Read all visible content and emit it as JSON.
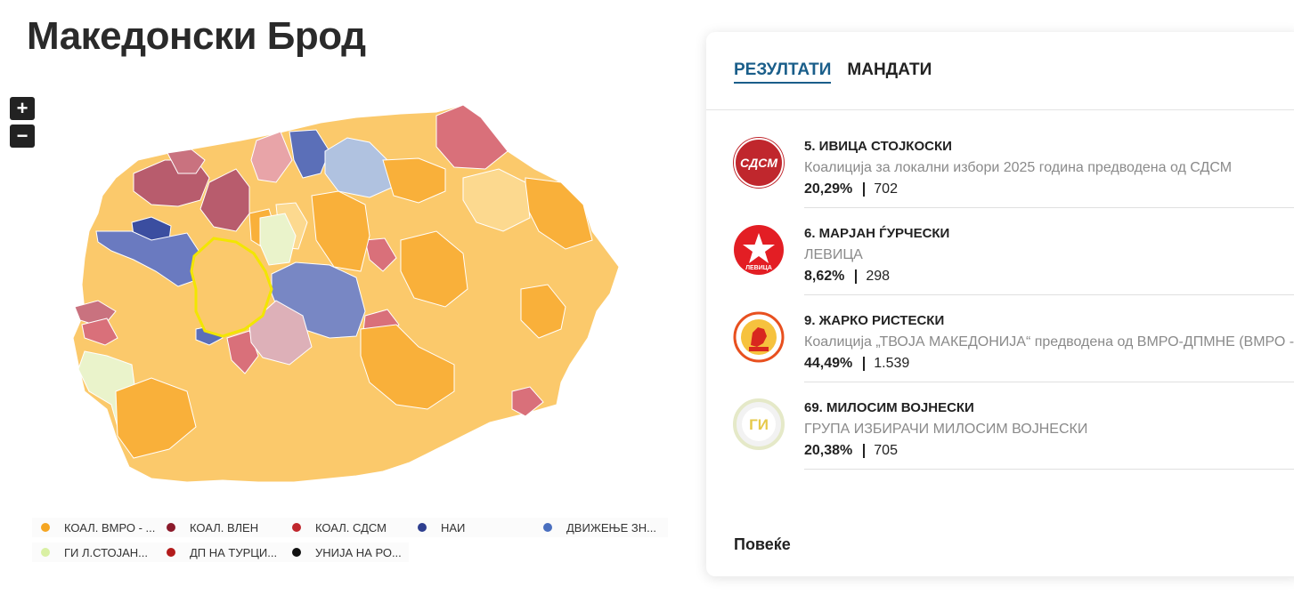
{
  "page": {
    "title": "Македонски Брод"
  },
  "map_controls": {
    "zoom_in": "+",
    "zoom_out": "−"
  },
  "legend": [
    {
      "label": "КОАЛ. ВМРО - ...",
      "color": "#f5a623"
    },
    {
      "label": "КОАЛ. ВЛЕН",
      "color": "#8b1a2b"
    },
    {
      "label": "КОАЛ. СДСМ",
      "color": "#c0272d"
    },
    {
      "label": "НАИ",
      "color": "#2e3f8f"
    },
    {
      "label": "ДВИЖЕЊЕ ЗН...",
      "color": "#4a6fbf"
    },
    {
      "label": "ГИ Л.СТОЈАН...",
      "color": "#d9f0a3"
    },
    {
      "label": "ДП НА ТУРЦИ...",
      "color": "#b31b1b"
    },
    {
      "label": "УНИЈА НА РО...",
      "color": "#111111"
    }
  ],
  "results": {
    "tabs": [
      {
        "label": "РЕЗУЛТАТИ",
        "active": true
      },
      {
        "label": "МАНДАТИ",
        "active": false
      }
    ],
    "candidates": [
      {
        "name": "5. ИВИЦА СТОЈКОСКИ",
        "party": "Коалиција за локални избори 2025 година предводена од СДСМ",
        "percent": "20,29%",
        "votes": "702",
        "logo_text": "СДСМ",
        "logo_icon": "sdsm-logo-icon",
        "logo_color": "#c0272d"
      },
      {
        "name": "6. МАРЈАН ЃУРЧЕСКИ",
        "party": "ЛЕВИЦА",
        "percent": "8,62%",
        "votes": "298",
        "logo_text": "ЛЕВИЦА",
        "logo_icon": "levica-star-logo-icon",
        "logo_color": "#e31e24"
      },
      {
        "name": "9. ЖАРКО РИСТЕСКИ",
        "party": "Коалиција „ТВОЈА МАКЕДОНИЈА“ предводена од ВМРО-ДПМНЕ (ВМРО -",
        "percent": "44,49%",
        "votes": "1.539",
        "logo_text": "",
        "logo_icon": "vmro-lion-logo-icon",
        "logo_color": "#e8501f"
      },
      {
        "name": "69. МИЛОСИМ ВОЈНЕСКИ",
        "party": "ГРУПА ИЗБИРАЧИ МИЛОСИМ ВОЈНЕСКИ",
        "percent": "20,38%",
        "votes": "705",
        "logo_text": "ГИ",
        "logo_icon": "gi-logo-icon",
        "logo_color": "#e6c94a"
      }
    ],
    "more_label": "Повеќе"
  },
  "colors": {
    "vmro_light": "#fbc96b",
    "vmro_mid": "#f9b03a",
    "vmro_pale": "#fcd98f",
    "vlen": "#b85c6d",
    "sdsm": "#d9707a",
    "nai": "#3b4ea0",
    "dzs": "#7887c4",
    "gi": "#eaf3cb",
    "highlight": "#f2e600"
  }
}
